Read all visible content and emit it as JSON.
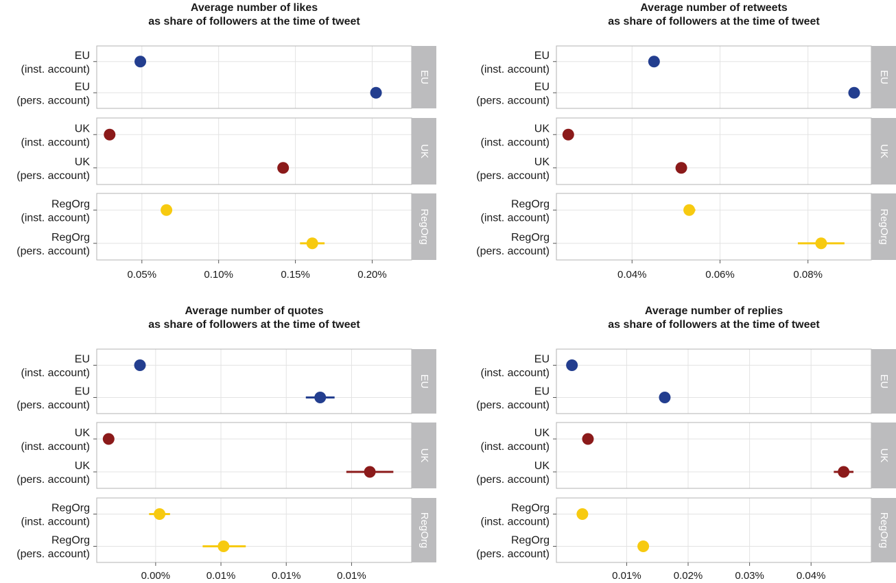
{
  "colors": {
    "EU": "#233e8f",
    "UK": "#8b1a1a",
    "RegOrg": "#f7ca10",
    "strip": "#bcbcbe",
    "grid": "#e3e3e3",
    "panel_border": "#b3b3b3"
  },
  "chart_data": [
    {
      "type": "scatter",
      "title": "Average number of likes\nas share of followers at the time of tweet",
      "x_ticks": [
        {
          "value": 0.05,
          "label": "0.05%"
        },
        {
          "value": 0.1,
          "label": "0.10%"
        },
        {
          "value": 0.15,
          "label": "0.15%"
        },
        {
          "value": 0.2,
          "label": "0.20%"
        }
      ],
      "xlim": [
        0.0206,
        0.2257
      ],
      "facets": [
        {
          "strip": "EU",
          "group": "EU",
          "rows": [
            {
              "label": "EU\n(inst. account)",
              "x": 0.049,
              "lo": 0.0485,
              "hi": 0.0495
            },
            {
              "label": "EU\n(pers. account)",
              "x": 0.2025,
              "lo": 0.199,
              "hi": 0.206
            }
          ]
        },
        {
          "strip": "UK",
          "group": "UK",
          "rows": [
            {
              "label": "UK\n(inst. account)",
              "x": 0.029,
              "lo": 0.0285,
              "hi": 0.0295
            },
            {
              "label": "UK\n(pers. account)",
              "x": 0.142,
              "lo": 0.1395,
              "hi": 0.1445
            }
          ]
        },
        {
          "strip": "RegOrg",
          "group": "RegOrg",
          "rows": [
            {
              "label": "RegOrg\n(inst. account)",
              "x": 0.066,
              "lo": 0.065,
              "hi": 0.067
            },
            {
              "label": "RegOrg\n(pers. account)",
              "x": 0.161,
              "lo": 0.153,
              "hi": 0.169
            }
          ]
        }
      ]
    },
    {
      "type": "scatter",
      "title": "Average number of retweets\nas share of followers at the time of tweet",
      "x_ticks": [
        {
          "value": 0.04,
          "label": "0.04%"
        },
        {
          "value": 0.06,
          "label": "0.06%"
        },
        {
          "value": 0.08,
          "label": "0.08%"
        }
      ],
      "xlim": [
        0.0228,
        0.0944
      ],
      "facets": [
        {
          "strip": "EU",
          "group": "EU",
          "rows": [
            {
              "label": "EU\n(inst. account)",
              "x": 0.045,
              "lo": 0.0447,
              "hi": 0.0453
            },
            {
              "label": "EU\n(pers. account)",
              "x": 0.0905,
              "lo": 0.0892,
              "hi": 0.0918
            }
          ]
        },
        {
          "strip": "UK",
          "group": "UK",
          "rows": [
            {
              "label": "UK\n(inst. account)",
              "x": 0.0255,
              "lo": 0.0252,
              "hi": 0.0258
            },
            {
              "label": "UK\n(pers. account)",
              "x": 0.0512,
              "lo": 0.0506,
              "hi": 0.0518
            }
          ]
        },
        {
          "strip": "RegOrg",
          "group": "RegOrg",
          "rows": [
            {
              "label": "RegOrg\n(inst. account)",
              "x": 0.053,
              "lo": 0.0518,
              "hi": 0.0544
            },
            {
              "label": "RegOrg\n(pers. account)",
              "x": 0.083,
              "lo": 0.0777,
              "hi": 0.0883
            }
          ]
        }
      ]
    },
    {
      "type": "scatter",
      "title": "Average number of quotes\nas share of followers at the time of tweet",
      "x_ticks": [
        {
          "value": 0.0,
          "label": "0.00%"
        },
        {
          "value": 0.005,
          "label": "0.01%"
        },
        {
          "value": 0.01,
          "label": "0.01%"
        },
        {
          "value": 0.015,
          "label": "0.01%"
        }
      ],
      "xlim": [
        -0.00451,
        0.0196
      ],
      "facets": [
        {
          "strip": "EU",
          "group": "EU",
          "rows": [
            {
              "label": "EU\n(inst. account)",
              "x": -0.0012,
              "lo": -0.0013,
              "hi": -0.0011
            },
            {
              "label": "EU\n(pers. account)",
              "x": 0.0126,
              "lo": 0.0115,
              "hi": 0.0137
            }
          ]
        },
        {
          "strip": "UK",
          "group": "UK",
          "rows": [
            {
              "label": "UK\n(inst. account)",
              "x": -0.0036,
              "lo": -0.0037,
              "hi": -0.0035
            },
            {
              "label": "UK\n(pers. account)",
              "x": 0.0164,
              "lo": 0.0146,
              "hi": 0.0182
            }
          ]
        },
        {
          "strip": "RegOrg",
          "group": "RegOrg",
          "rows": [
            {
              "label": "RegOrg\n(inst. account)",
              "x": 0.0003,
              "lo": -0.0005,
              "hi": 0.0011
            },
            {
              "label": "RegOrg\n(pers. account)",
              "x": 0.0052,
              "lo": 0.0036,
              "hi": 0.0069
            }
          ]
        }
      ]
    },
    {
      "type": "scatter",
      "title": "Average number of replies\nas share of followers at the time of tweet",
      "x_ticks": [
        {
          "value": 0.01,
          "label": "0.01%"
        },
        {
          "value": 0.02,
          "label": "0.02%"
        },
        {
          "value": 0.03,
          "label": "0.03%"
        },
        {
          "value": 0.04,
          "label": "0.04%"
        }
      ],
      "xlim": [
        -0.00143,
        0.0498
      ],
      "facets": [
        {
          "strip": "EU",
          "group": "EU",
          "rows": [
            {
              "label": "EU\n(inst. account)",
              "x": 0.0011,
              "lo": 0.001,
              "hi": 0.0012
            },
            {
              "label": "EU\n(pers. account)",
              "x": 0.0162,
              "lo": 0.0158,
              "hi": 0.0166
            }
          ]
        },
        {
          "strip": "UK",
          "group": "UK",
          "rows": [
            {
              "label": "UK\n(inst. account)",
              "x": 0.0037,
              "lo": 0.0035,
              "hi": 0.0039
            },
            {
              "label": "UK\n(pers. account)",
              "x": 0.0453,
              "lo": 0.0437,
              "hi": 0.0469
            }
          ]
        },
        {
          "strip": "RegOrg",
          "group": "RegOrg",
          "rows": [
            {
              "label": "RegOrg\n(inst. account)",
              "x": 0.0028,
              "lo": 0.0025,
              "hi": 0.0031
            },
            {
              "label": "RegOrg\n(pers. account)",
              "x": 0.0127,
              "lo": 0.0122,
              "hi": 0.0132
            }
          ]
        }
      ]
    }
  ]
}
